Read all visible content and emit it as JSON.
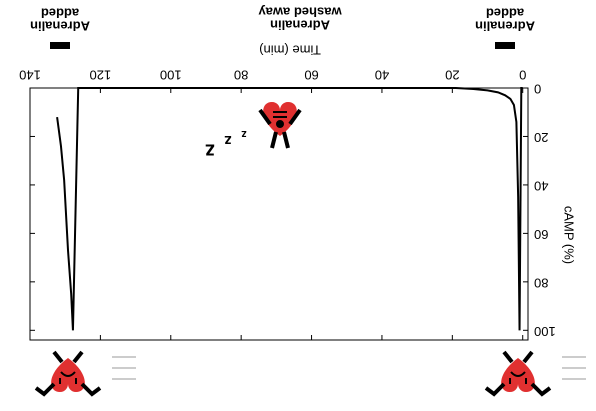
{
  "chart_data": {
    "type": "line",
    "x_label": "Time (min)",
    "y_label": "cAMP (%)",
    "x": [
      0,
      0.4,
      0.9,
      1.3,
      1.8,
      2.5,
      3.5,
      5,
      7,
      10,
      14,
      19,
      60,
      120,
      126.3,
      127.8,
      128.3,
      129.2,
      130.3,
      131.2,
      132.3
    ],
    "values": [
      0,
      0,
      100,
      45,
      14,
      7,
      4.5,
      3,
      1.8,
      1,
      0.4,
      0,
      0,
      0,
      0,
      100,
      85,
      67,
      38,
      24,
      12
    ],
    "color": "#000000",
    "xlim": [
      -1.5,
      140
    ],
    "ylim": [
      0,
      104
    ],
    "xticks": [
      0,
      20,
      40,
      60,
      80,
      100,
      120,
      140
    ],
    "yticks": [
      0,
      20,
      40,
      60,
      80,
      100
    ],
    "annotations": [
      [
        "Adrenalin",
        "added"
      ],
      [
        "Adrenalin",
        "washed away"
      ],
      [
        "Adrenalin",
        "added"
      ]
    ],
    "sleep": [
      "z",
      "z",
      "z"
    ]
  }
}
